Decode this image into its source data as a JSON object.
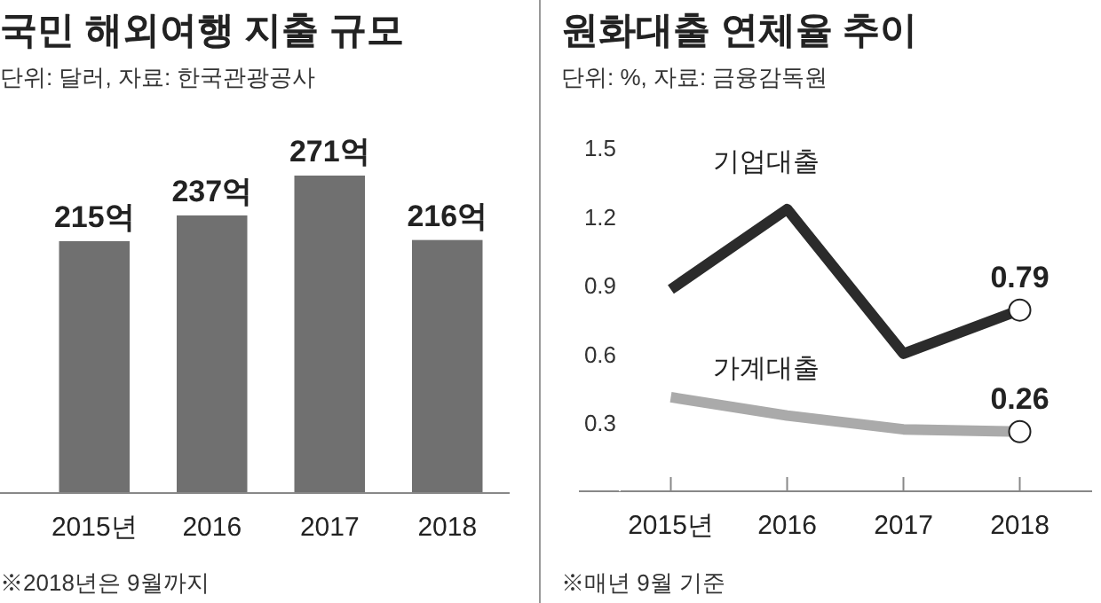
{
  "chart_data": [
    {
      "type": "bar",
      "title": "국민 해외여행 지출 규모",
      "subtitle": "단위: 달러, 자료: 한국관광공사",
      "categories": [
        "2015년",
        "2016",
        "2017",
        "2018"
      ],
      "values": [
        215,
        237,
        271,
        216
      ],
      "ylim": [
        0,
        271
      ],
      "color": "#707070",
      "value_labels": [
        "215억",
        "237억",
        "271억",
        "216억"
      ],
      "tick_labels": "x",
      "annotations": [
        "※2018년은 9월까지"
      ]
    },
    {
      "type": "line",
      "title": "원화대출 연체율 추이",
      "subtitle": "단위: %, 자료: 금융감독원",
      "categories": [
        "2015년",
        "2016",
        "2017",
        "2018"
      ],
      "ylim": [
        0,
        1.5
      ],
      "yticks": [
        0.3,
        0.6,
        0.9,
        1.2,
        1.5
      ],
      "series": [
        {
          "name": "기업대출",
          "color": "#2b2b2b",
          "values": [
            0.88,
            1.23,
            0.6,
            0.79
          ],
          "value_labels": [
            null,
            null,
            null,
            "0.79"
          ]
        },
        {
          "name": "가계대출",
          "color": "#aaaaaa",
          "values": [
            0.41,
            0.33,
            0.27,
            0.26
          ],
          "value_labels": [
            null,
            null,
            null,
            "0.26"
          ]
        }
      ],
      "annotations": [
        "※매년 9월 기준"
      ]
    }
  ]
}
